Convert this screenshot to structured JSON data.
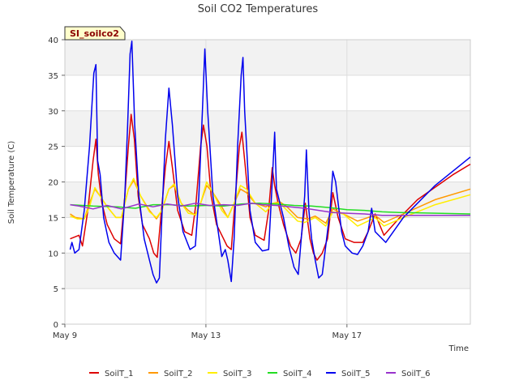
{
  "chart_data": {
    "type": "line",
    "title": "Soil CO2 Temperatures",
    "xlabel": "Time",
    "ylabel": "Soil Temperature (C)",
    "badge": "SI_soilco2",
    "ylim": [
      0,
      40
    ],
    "yticks": [
      0,
      5,
      10,
      15,
      20,
      25,
      30,
      35,
      40
    ],
    "xlim_days": [
      0,
      11.5
    ],
    "xticks": [
      {
        "label": "May 9",
        "day": 0
      },
      {
        "label": "May 13",
        "day": 4
      },
      {
        "label": "May 17",
        "day": 8
      }
    ],
    "grid": true,
    "legend_position": "bottom",
    "series": [
      {
        "name": "SoilT_1",
        "color": "#dd0000",
        "points": [
          [
            0.15,
            12
          ],
          [
            0.4,
            12.5
          ],
          [
            0.5,
            11
          ],
          [
            0.65,
            16
          ],
          [
            0.8,
            23
          ],
          [
            0.88,
            26
          ],
          [
            0.95,
            21
          ],
          [
            1.05,
            17
          ],
          [
            1.2,
            14
          ],
          [
            1.4,
            12
          ],
          [
            1.58,
            11.3
          ],
          [
            1.7,
            18
          ],
          [
            1.8,
            25
          ],
          [
            1.88,
            29.5
          ],
          [
            1.97,
            26
          ],
          [
            2.08,
            18
          ],
          [
            2.2,
            14
          ],
          [
            2.4,
            12
          ],
          [
            2.52,
            10
          ],
          [
            2.62,
            9.4
          ],
          [
            2.72,
            15
          ],
          [
            2.85,
            22
          ],
          [
            2.95,
            25.7
          ],
          [
            3.05,
            22
          ],
          [
            3.2,
            16
          ],
          [
            3.4,
            13
          ],
          [
            3.6,
            12.5
          ],
          [
            3.72,
            17
          ],
          [
            3.85,
            25
          ],
          [
            3.93,
            28
          ],
          [
            4.03,
            25
          ],
          [
            4.15,
            18
          ],
          [
            4.3,
            14
          ],
          [
            4.5,
            12
          ],
          [
            4.6,
            11
          ],
          [
            4.72,
            10.5
          ],
          [
            4.82,
            17
          ],
          [
            4.95,
            25
          ],
          [
            5.02,
            27
          ],
          [
            5.12,
            22
          ],
          [
            5.25,
            15
          ],
          [
            5.4,
            12.5
          ],
          [
            5.65,
            11.8
          ],
          [
            5.78,
            16
          ],
          [
            5.88,
            22
          ],
          [
            5.95,
            19.5
          ],
          [
            6.05,
            17
          ],
          [
            6.2,
            14
          ],
          [
            6.4,
            11
          ],
          [
            6.55,
            10
          ],
          [
            6.7,
            12
          ],
          [
            6.82,
            17
          ],
          [
            6.95,
            12
          ],
          [
            7.05,
            10
          ],
          [
            7.15,
            9
          ],
          [
            7.3,
            10
          ],
          [
            7.45,
            12
          ],
          [
            7.6,
            18.5
          ],
          [
            7.75,
            15
          ],
          [
            7.95,
            12
          ],
          [
            8.2,
            11.5
          ],
          [
            8.45,
            11.5
          ],
          [
            8.6,
            13
          ],
          [
            8.8,
            15.5
          ],
          [
            9.05,
            12.5
          ],
          [
            9.5,
            15
          ],
          [
            10,
            17.5
          ],
          [
            11,
            21
          ],
          [
            11.5,
            22.5
          ]
        ]
      },
      {
        "name": "SoilT_2",
        "color": "#ff9900",
        "points": [
          [
            0.15,
            15.5
          ],
          [
            0.3,
            15
          ],
          [
            0.55,
            14.8
          ],
          [
            0.7,
            17
          ],
          [
            0.85,
            19
          ],
          [
            1,
            18
          ],
          [
            1.2,
            16.5
          ],
          [
            1.45,
            15
          ],
          [
            1.6,
            15
          ],
          [
            1.8,
            19
          ],
          [
            1.95,
            20.2
          ],
          [
            2.15,
            18
          ],
          [
            2.4,
            16
          ],
          [
            2.6,
            14.8
          ],
          [
            2.75,
            16
          ],
          [
            2.95,
            19
          ],
          [
            3.1,
            19.5
          ],
          [
            3.3,
            17
          ],
          [
            3.5,
            16
          ],
          [
            3.7,
            15.3
          ],
          [
            3.85,
            17
          ],
          [
            4.02,
            19.5
          ],
          [
            4.2,
            18.5
          ],
          [
            4.45,
            16.5
          ],
          [
            4.62,
            15
          ],
          [
            4.8,
            17
          ],
          [
            4.98,
            19
          ],
          [
            5.15,
            18.5
          ],
          [
            5.4,
            17
          ],
          [
            5.7,
            16.5
          ],
          [
            5.9,
            17
          ],
          [
            6.1,
            17.2
          ],
          [
            6.3,
            16.5
          ],
          [
            6.6,
            15
          ],
          [
            6.9,
            14.8
          ],
          [
            7.1,
            15.2
          ],
          [
            7.4,
            14.2
          ],
          [
            7.6,
            16.2
          ],
          [
            7.9,
            15.5
          ],
          [
            8.3,
            14.5
          ],
          [
            8.6,
            15
          ],
          [
            8.8,
            15.3
          ],
          [
            9.05,
            14.3
          ],
          [
            9.6,
            15.5
          ],
          [
            10.5,
            17.5
          ],
          [
            11.5,
            19
          ]
        ]
      },
      {
        "name": "SoilT_3",
        "color": "#ffee00",
        "points": [
          [
            0.15,
            15.2
          ],
          [
            0.35,
            14.8
          ],
          [
            0.55,
            14.8
          ],
          [
            0.7,
            16.5
          ],
          [
            0.85,
            19.2
          ],
          [
            1,
            18
          ],
          [
            1.2,
            16.5
          ],
          [
            1.45,
            15
          ],
          [
            1.6,
            15
          ],
          [
            1.8,
            19
          ],
          [
            1.95,
            20.5
          ],
          [
            2.15,
            18
          ],
          [
            2.4,
            15.8
          ],
          [
            2.6,
            15
          ],
          [
            2.75,
            16
          ],
          [
            2.95,
            19
          ],
          [
            3.1,
            19.7
          ],
          [
            3.3,
            17
          ],
          [
            3.5,
            15.6
          ],
          [
            3.7,
            15.4
          ],
          [
            3.85,
            17
          ],
          [
            4.02,
            20
          ],
          [
            4.2,
            18.5
          ],
          [
            4.45,
            16
          ],
          [
            4.62,
            15
          ],
          [
            4.8,
            17
          ],
          [
            4.98,
            19.5
          ],
          [
            5.15,
            19
          ],
          [
            5.4,
            17
          ],
          [
            5.7,
            15.8
          ],
          [
            5.9,
            17
          ],
          [
            6.1,
            17
          ],
          [
            6.3,
            16
          ],
          [
            6.6,
            14.5
          ],
          [
            6.8,
            14.3
          ],
          [
            7.1,
            15
          ],
          [
            7.4,
            13.8
          ],
          [
            7.6,
            15.8
          ],
          [
            7.9,
            15.5
          ],
          [
            8.3,
            13.8
          ],
          [
            8.6,
            14.5
          ],
          [
            8.8,
            15
          ],
          [
            9.05,
            13.8
          ],
          [
            9.6,
            15
          ],
          [
            10.5,
            16.8
          ],
          [
            11.5,
            18.2
          ]
        ]
      },
      {
        "name": "SoilT_4",
        "color": "#22dd22",
        "points": [
          [
            0.15,
            16.8
          ],
          [
            0.8,
            16.6
          ],
          [
            1.5,
            16.5
          ],
          [
            2,
            16.3
          ],
          [
            2.5,
            16.8
          ],
          [
            3,
            16.8
          ],
          [
            3.5,
            16.6
          ],
          [
            4,
            16.7
          ],
          [
            4.5,
            16.6
          ],
          [
            5,
            16.9
          ],
          [
            5.5,
            17
          ],
          [
            6,
            16.9
          ],
          [
            6.5,
            16.7
          ],
          [
            7,
            16.6
          ],
          [
            7.5,
            16.4
          ],
          [
            8,
            16.1
          ],
          [
            8.5,
            16
          ],
          [
            9,
            15.8
          ],
          [
            9.5,
            15.7
          ],
          [
            11.5,
            15.5
          ]
        ]
      },
      {
        "name": "SoilT_5",
        "color": "#0000ee",
        "points": [
          [
            0.15,
            10.5
          ],
          [
            0.2,
            11.5
          ],
          [
            0.28,
            10
          ],
          [
            0.4,
            10.5
          ],
          [
            0.55,
            16
          ],
          [
            0.7,
            25
          ],
          [
            0.82,
            35.3
          ],
          [
            0.88,
            36.5
          ],
          [
            0.93,
            23
          ],
          [
            1.0,
            21
          ],
          [
            1.1,
            15
          ],
          [
            1.25,
            11.5
          ],
          [
            1.4,
            10
          ],
          [
            1.58,
            9
          ],
          [
            1.7,
            18
          ],
          [
            1.78,
            28
          ],
          [
            1.85,
            38
          ],
          [
            1.9,
            39.8
          ],
          [
            1.98,
            28
          ],
          [
            2.1,
            18
          ],
          [
            2.25,
            12
          ],
          [
            2.4,
            9
          ],
          [
            2.5,
            7
          ],
          [
            2.6,
            5.8
          ],
          [
            2.68,
            6.5
          ],
          [
            2.75,
            15
          ],
          [
            2.85,
            26
          ],
          [
            2.95,
            33.2
          ],
          [
            3.05,
            28
          ],
          [
            3.2,
            18
          ],
          [
            3.35,
            13
          ],
          [
            3.55,
            10.5
          ],
          [
            3.7,
            11
          ],
          [
            3.8,
            18
          ],
          [
            3.9,
            30
          ],
          [
            3.97,
            38.7
          ],
          [
            4.05,
            30
          ],
          [
            4.2,
            18
          ],
          [
            4.35,
            13
          ],
          [
            4.45,
            9.5
          ],
          [
            4.55,
            10.5
          ],
          [
            4.62,
            9
          ],
          [
            4.72,
            6
          ],
          [
            4.8,
            12
          ],
          [
            4.9,
            25
          ],
          [
            5.0,
            35
          ],
          [
            5.05,
            37.5
          ],
          [
            5.1,
            30
          ],
          [
            5.25,
            16
          ],
          [
            5.4,
            11.5
          ],
          [
            5.6,
            10.3
          ],
          [
            5.78,
            10.5
          ],
          [
            5.88,
            20
          ],
          [
            5.95,
            27
          ],
          [
            6.0,
            19
          ],
          [
            6.1,
            17
          ],
          [
            6.2,
            15
          ],
          [
            6.35,
            11
          ],
          [
            6.5,
            8
          ],
          [
            6.62,
            7
          ],
          [
            6.72,
            13
          ],
          [
            6.8,
            18
          ],
          [
            6.85,
            24.5
          ],
          [
            6.92,
            16
          ],
          [
            7.0,
            12
          ],
          [
            7.1,
            9
          ],
          [
            7.2,
            6.5
          ],
          [
            7.3,
            7
          ],
          [
            7.4,
            11
          ],
          [
            7.52,
            16
          ],
          [
            7.6,
            21.5
          ],
          [
            7.68,
            20
          ],
          [
            7.75,
            17
          ],
          [
            7.85,
            13
          ],
          [
            7.95,
            11
          ],
          [
            8.15,
            10
          ],
          [
            8.3,
            9.8
          ],
          [
            8.45,
            11
          ],
          [
            8.6,
            13
          ],
          [
            8.7,
            16.3
          ],
          [
            8.8,
            13
          ],
          [
            9.1,
            11.5
          ],
          [
            9.6,
            15
          ],
          [
            10.5,
            19.5
          ],
          [
            11.5,
            23.5
          ]
        ]
      },
      {
        "name": "SoilT_6",
        "color": "#9933cc",
        "points": [
          [
            0.15,
            16.8
          ],
          [
            0.4,
            16.6
          ],
          [
            0.8,
            16.2
          ],
          [
            1.2,
            16.7
          ],
          [
            1.6,
            16.2
          ],
          [
            2.1,
            16.9
          ],
          [
            2.5,
            16.5
          ],
          [
            2.9,
            16.9
          ],
          [
            3.3,
            16.6
          ],
          [
            3.7,
            17
          ],
          [
            4.1,
            16.7
          ],
          [
            4.5,
            16.8
          ],
          [
            4.9,
            16.7
          ],
          [
            5.3,
            17
          ],
          [
            5.6,
            16.8
          ],
          [
            6,
            16.7
          ],
          [
            6.4,
            16.5
          ],
          [
            6.8,
            16.3
          ],
          [
            7.2,
            16
          ],
          [
            7.6,
            15.7
          ],
          [
            8,
            15.6
          ],
          [
            8.5,
            15.5
          ],
          [
            9,
            15.3
          ],
          [
            11.5,
            15.3
          ]
        ]
      }
    ]
  }
}
